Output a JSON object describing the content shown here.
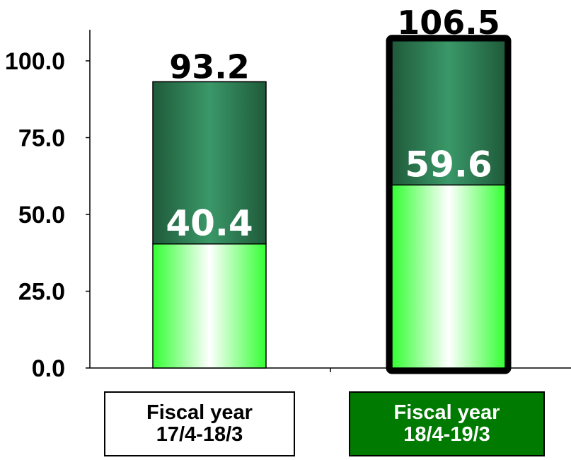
{
  "chart_data": {
    "type": "bar",
    "stacked": true,
    "categories": [
      {
        "line1": "Fiscal year",
        "line2": "17/4-18/3"
      },
      {
        "line1": "Fiscal year",
        "line2": "18/4-19/3"
      }
    ],
    "series": [
      {
        "values": [
          40.4,
          59.6
        ],
        "color_light": "#ffffff",
        "color_bright": "#33ff33"
      },
      {
        "values": [
          52.8,
          46.9
        ],
        "color_dark": "#1f5a3a",
        "color_mid": "#3a9868"
      }
    ],
    "segment_labels": [
      "40.4",
      "59.6"
    ],
    "totals": [
      93.2,
      106.5
    ],
    "total_labels": [
      "93.2",
      "106.5"
    ],
    "yticks": [
      "0.0",
      "25.0",
      "50.0",
      "75.0",
      "100.0"
    ],
    "ylim": [
      0,
      106.5
    ],
    "grid": false,
    "highlight_index": 1,
    "category_box_styles": [
      {
        "background": "#ffffff",
        "text_color": "#000000",
        "border": "#000000"
      },
      {
        "background": "#007a00",
        "text_color": "#ffffff",
        "border": "#000000"
      }
    ]
  }
}
